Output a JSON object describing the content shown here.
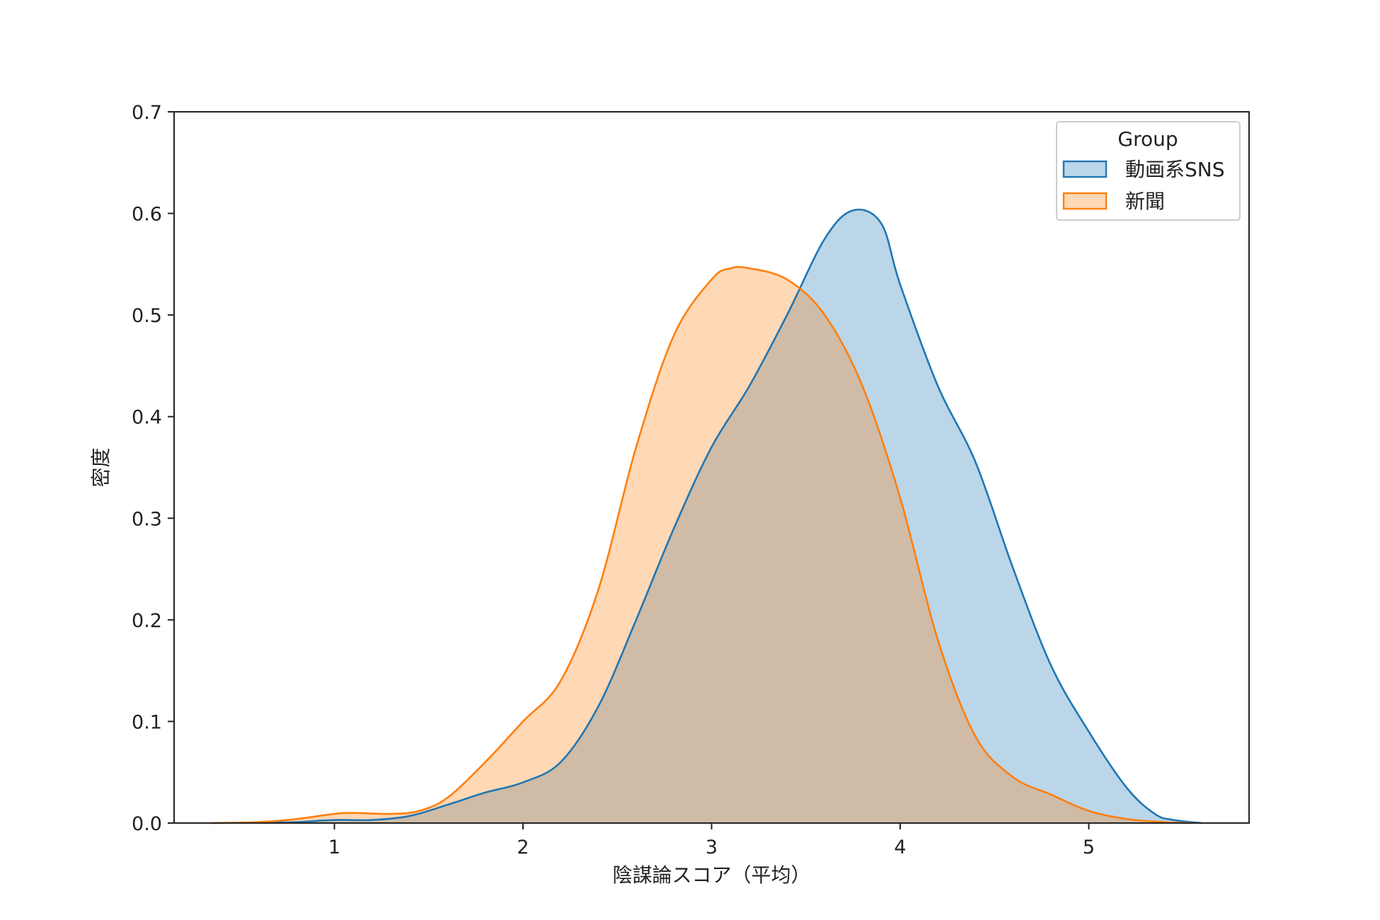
{
  "chart_data": {
    "type": "area",
    "title": "",
    "xlabel": "陰謀論スコア（平均）",
    "ylabel": "密度",
    "xlim": [
      0.15,
      5.85
    ],
    "ylim": [
      0,
      0.7
    ],
    "xticks": [
      1,
      2,
      3,
      4,
      5
    ],
    "yticks": [
      0.0,
      0.1,
      0.2,
      0.3,
      0.4,
      0.5,
      0.6,
      0.7
    ],
    "ytick_labels": [
      "0.0",
      "0.1",
      "0.2",
      "0.3",
      "0.4",
      "0.5",
      "0.6",
      "0.7"
    ],
    "xtick_labels": [
      "1",
      "2",
      "3",
      "4",
      "5"
    ],
    "grid": false,
    "legend": {
      "title": "Group",
      "position": "top-right"
    },
    "series": [
      {
        "name": "動画系SNS",
        "line_color": "#1f77b4",
        "fill_color": "#1f77b4",
        "fill_opacity": 0.3,
        "x": [
          0.35,
          0.6,
          0.8,
          1.0,
          1.2,
          1.4,
          1.6,
          1.8,
          2.0,
          2.2,
          2.4,
          2.6,
          2.8,
          3.0,
          3.2,
          3.4,
          3.6,
          3.75,
          3.9,
          4.0,
          4.2,
          4.4,
          4.6,
          4.8,
          5.0,
          5.2,
          5.35,
          5.45,
          5.6
        ],
        "y": [
          0.0,
          0.0005,
          0.001,
          0.003,
          0.003,
          0.007,
          0.018,
          0.03,
          0.04,
          0.06,
          0.115,
          0.2,
          0.29,
          0.37,
          0.43,
          0.5,
          0.575,
          0.603,
          0.59,
          0.53,
          0.43,
          0.355,
          0.25,
          0.155,
          0.09,
          0.035,
          0.009,
          0.003,
          0.0
        ]
      },
      {
        "name": "新聞",
        "line_color": "#ff7f0e",
        "fill_color": "#ff7f0e",
        "fill_opacity": 0.3,
        "x": [
          0.35,
          0.6,
          0.8,
          1.0,
          1.1,
          1.3,
          1.45,
          1.6,
          1.8,
          2.0,
          2.2,
          2.4,
          2.6,
          2.8,
          3.0,
          3.1,
          3.2,
          3.4,
          3.6,
          3.8,
          4.0,
          4.2,
          4.4,
          4.6,
          4.8,
          5.0,
          5.2,
          5.4,
          5.55
        ],
        "y": [
          0.0,
          0.001,
          0.004,
          0.009,
          0.01,
          0.009,
          0.012,
          0.025,
          0.06,
          0.1,
          0.14,
          0.23,
          0.37,
          0.48,
          0.535,
          0.546,
          0.546,
          0.535,
          0.5,
          0.43,
          0.32,
          0.18,
          0.085,
          0.045,
          0.028,
          0.012,
          0.004,
          0.001,
          0.0
        ]
      }
    ]
  }
}
